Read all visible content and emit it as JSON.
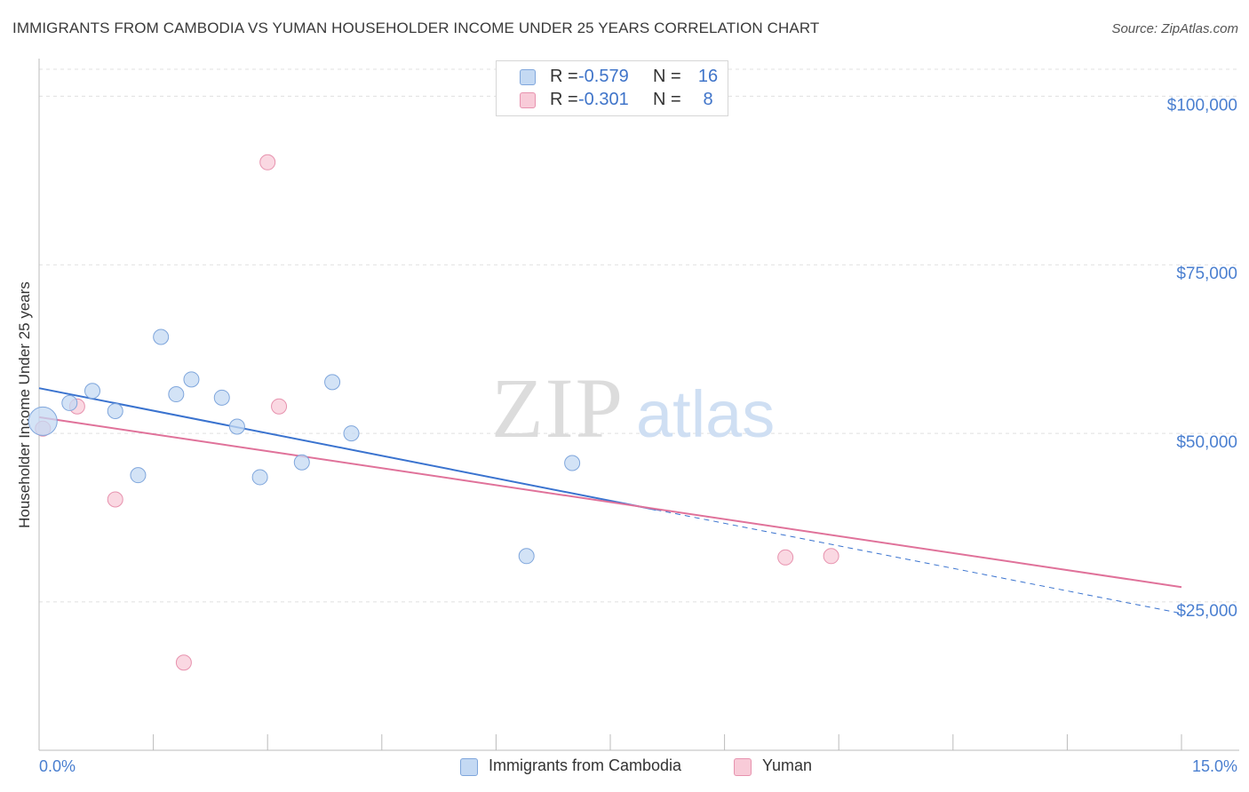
{
  "title": "IMMIGRANTS FROM CAMBODIA VS YUMAN HOUSEHOLDER INCOME UNDER 25 YEARS CORRELATION CHART",
  "source": "Source: ZipAtlas.com",
  "watermark": {
    "zip": "ZIP",
    "atlas": "atlas"
  },
  "legend_stats": [
    {
      "r_label": "R =",
      "r_value": "-0.579",
      "n_label": "N =",
      "n_value": "16"
    },
    {
      "r_label": "R =",
      "r_value": "-0.301",
      "n_label": "N =",
      "n_value": "8"
    }
  ],
  "colors": {
    "cambodia_fill": "#c4d9f3",
    "cambodia_stroke": "#7fa6dc",
    "cambodia_line": "#3a73cf",
    "yuman_fill": "#f8cbd8",
    "yuman_stroke": "#e792ae",
    "yuman_line": "#e0729a",
    "tick_label": "#4a7fd0",
    "grid": "#e0e0e0"
  },
  "chart_data": {
    "type": "scatter",
    "title": "IMMIGRANTS FROM CAMBODIA VS YUMAN HOUSEHOLDER INCOME UNDER 25 YEARS CORRELATION CHART",
    "xlabel": "",
    "ylabel": "Householder Income Under 25 years",
    "xlim": [
      0,
      15
    ],
    "ylim": [
      3000,
      104000
    ],
    "x_tick_labels": [
      "0.0%",
      "15.0%"
    ],
    "y_ticks": [
      25000,
      50000,
      75000,
      100000
    ],
    "y_tick_labels": [
      "$25,000",
      "$50,000",
      "$75,000",
      "$100,000"
    ],
    "grid": true,
    "legend_position": "top-center",
    "series": [
      {
        "name": "Immigrants from Cambodia",
        "r": -0.579,
        "n": 16,
        "points": [
          {
            "x": 0.05,
            "y": 51800,
            "big": true
          },
          {
            "x": 0.4,
            "y": 54500
          },
          {
            "x": 0.7,
            "y": 56300
          },
          {
            "x": 1.0,
            "y": 53300
          },
          {
            "x": 1.3,
            "y": 43800
          },
          {
            "x": 1.6,
            "y": 64300
          },
          {
            "x": 1.8,
            "y": 55800
          },
          {
            "x": 2.0,
            "y": 58000
          },
          {
            "x": 2.4,
            "y": 55300
          },
          {
            "x": 2.6,
            "y": 51000
          },
          {
            "x": 2.9,
            "y": 43500
          },
          {
            "x": 3.45,
            "y": 45700
          },
          {
            "x": 3.85,
            "y": 57600
          },
          {
            "x": 4.1,
            "y": 50000
          },
          {
            "x": 6.4,
            "y": 31800
          },
          {
            "x": 7.0,
            "y": 45600
          }
        ],
        "trend": {
          "x0": 0,
          "y0": 56700,
          "x_solid_end": 8.1,
          "x1": 15,
          "y1": 23300
        }
      },
      {
        "name": "Yuman",
        "r": -0.301,
        "n": 8,
        "points": [
          {
            "x": 0.05,
            "y": 50700
          },
          {
            "x": 0.5,
            "y": 54000
          },
          {
            "x": 1.0,
            "y": 40200
          },
          {
            "x": 1.9,
            "y": 16000
          },
          {
            "x": 3.0,
            "y": 90200
          },
          {
            "x": 3.15,
            "y": 54000
          },
          {
            "x": 9.8,
            "y": 31600
          },
          {
            "x": 10.4,
            "y": 31800
          }
        ],
        "trend": {
          "x0": 0,
          "y0": 52400,
          "x1": 15,
          "y1": 27200
        }
      }
    ]
  }
}
